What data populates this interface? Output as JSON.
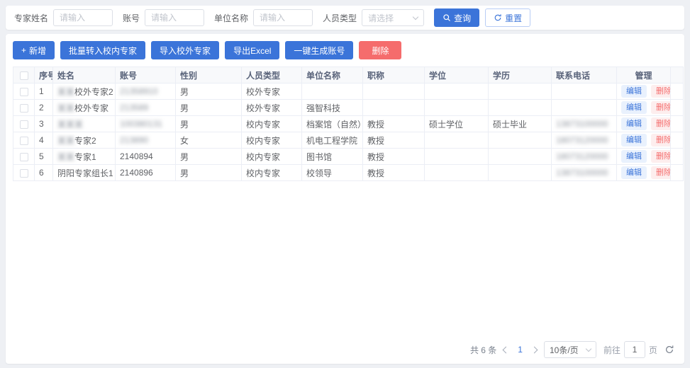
{
  "search": {
    "fields": [
      {
        "label": "专家姓名",
        "placeholder": "请输入",
        "type": "input",
        "name": "expert-name-input"
      },
      {
        "label": "账号",
        "placeholder": "请输入",
        "type": "input",
        "name": "account-input"
      },
      {
        "label": "单位名称",
        "placeholder": "请输入",
        "type": "input",
        "name": "unit-name-input"
      },
      {
        "label": "人员类型",
        "placeholder": "请选择",
        "type": "select",
        "name": "person-type-select"
      }
    ],
    "query_label": "查询",
    "reset_label": "重置"
  },
  "toolbar": {
    "buttons": [
      {
        "label": "新增",
        "icon": "plus",
        "style": "primary",
        "name": "add-button"
      },
      {
        "label": "批量转入校内专家",
        "style": "primary",
        "name": "batch-transfer-internal-button"
      },
      {
        "label": "导入校外专家",
        "style": "primary",
        "name": "import-external-expert-button"
      },
      {
        "label": "导出Excel",
        "style": "primary",
        "name": "export-excel-button"
      },
      {
        "label": "一键生成账号",
        "style": "primary",
        "name": "generate-account-button"
      },
      {
        "label": "删除",
        "style": "danger",
        "name": "delete-button"
      }
    ]
  },
  "table": {
    "columns": [
      "序号",
      "姓名",
      "账号",
      "性别",
      "人员类型",
      "单位名称",
      "职称",
      "学位",
      "学历",
      "联系电话",
      "管理"
    ],
    "edit_label": "编辑",
    "delete_label": "删除",
    "rows": [
      {
        "no": "1",
        "name_blur": "某某",
        "name": "校外专家2",
        "account_blur": "21358910",
        "account": "",
        "gender": "男",
        "person_type": "校外专家",
        "unit": "",
        "title": "",
        "degree": "",
        "education": "",
        "phone_blur": ""
      },
      {
        "no": "2",
        "name_blur": "某某",
        "name": "校外专家",
        "account_blur": "213589",
        "account": "",
        "gender": "男",
        "person_type": "校外专家",
        "unit": "强智科技",
        "title": "",
        "degree": "",
        "education": "",
        "phone_blur": ""
      },
      {
        "no": "3",
        "name_blur": "某某某",
        "name": "",
        "account_blur": "100380131",
        "account": "",
        "gender": "男",
        "person_type": "校内专家",
        "unit": "档案馆（自然）",
        "title": "教授",
        "degree": "硕士学位",
        "education": "硕士毕业",
        "phone_blur": "13873100000"
      },
      {
        "no": "4",
        "name_blur": "某某",
        "name": "专家2",
        "account_blur": "213890",
        "account": "",
        "gender": "女",
        "person_type": "校内专家",
        "unit": "机电工程学院",
        "title": "教授",
        "degree": "",
        "education": "",
        "phone_blur": "18073120000"
      },
      {
        "no": "5",
        "name_blur": "某某",
        "name": "专家1",
        "account_blur": "",
        "account": "2140894",
        "gender": "男",
        "person_type": "校内专家",
        "unit": "图书馆",
        "title": "教授",
        "degree": "",
        "education": "",
        "phone_blur": "18073120000"
      },
      {
        "no": "6",
        "name_blur": "",
        "name": "阴阳专家组长1",
        "account_blur": "",
        "account": "2140896",
        "gender": "男",
        "person_type": "校内专家",
        "unit": "校领导",
        "title": "教授",
        "degree": "",
        "education": "",
        "phone_blur": "13873100000"
      }
    ]
  },
  "pagination": {
    "total": "共 6 条",
    "current_page": "1",
    "page_size": "10条/页",
    "goto_label": "前往",
    "goto_value": "1",
    "page_label": "页"
  },
  "colors": {
    "primary": "#3b74d9",
    "danger": "#f56c6c",
    "edit_chip_bg": "#e9f1fd",
    "delete_chip_bg": "#fdeeee",
    "page_bg": "#eef0f4",
    "table_border": "#ebeef5",
    "header_bg": "#f8f9fb"
  }
}
